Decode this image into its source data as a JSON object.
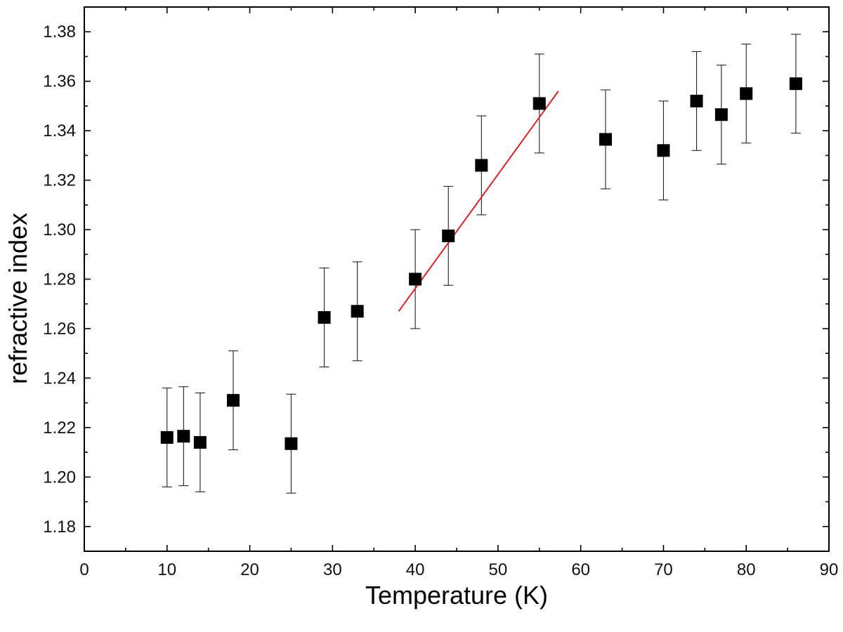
{
  "chart_data": {
    "type": "scatter",
    "title": "",
    "xlabel": "Temperature (K)",
    "ylabel": "refractive index",
    "xlim": [
      0,
      90
    ],
    "ylim": [
      1.17,
      1.39
    ],
    "x_ticks": [
      0,
      10,
      20,
      30,
      40,
      50,
      60,
      70,
      80,
      90
    ],
    "x_tick_labels": [
      "0",
      "10",
      "20",
      "30",
      "40",
      "50",
      "60",
      "70",
      "80",
      "90"
    ],
    "y_ticks": [
      1.18,
      1.2,
      1.22,
      1.24,
      1.26,
      1.28,
      1.3,
      1.32,
      1.34,
      1.36,
      1.38
    ],
    "y_tick_labels": [
      "1.18",
      "1.20",
      "1.22",
      "1.24",
      "1.26",
      "1.28",
      "1.30",
      "1.32",
      "1.34",
      "1.36",
      "1.38"
    ],
    "grid": false,
    "legend": "none",
    "series": [
      {
        "marker": "square",
        "color": "#000000",
        "x": [
          10,
          12,
          14,
          18,
          25,
          29,
          33,
          40,
          44,
          48,
          55,
          63,
          70,
          74,
          77,
          80,
          86
        ],
        "y": [
          1.216,
          1.2165,
          1.214,
          1.231,
          1.2135,
          1.2645,
          1.267,
          1.28,
          1.2975,
          1.326,
          1.351,
          1.3365,
          1.332,
          1.352,
          1.3465,
          1.355,
          1.359
        ],
        "yerr": [
          0.02,
          0.02,
          0.02,
          0.02,
          0.02,
          0.02,
          0.02,
          0.02,
          0.02,
          0.02,
          0.02,
          0.02,
          0.02,
          0.02,
          0.02,
          0.02,
          0.02
        ]
      }
    ],
    "fit_line": {
      "color": "#e02020",
      "x": [
        38,
        57.3
      ],
      "y": [
        1.267,
        1.356
      ]
    }
  }
}
